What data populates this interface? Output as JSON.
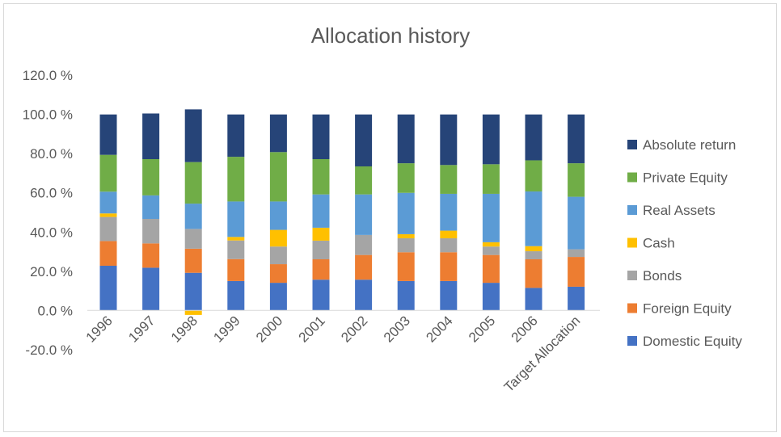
{
  "chart_data": {
    "type": "bar",
    "stacked": true,
    "title": "Allocation history",
    "xlabel": "",
    "ylabel": "",
    "ylim": [
      -20,
      120
    ],
    "yticks": [
      "-20.0 %",
      "0.0 %",
      "20.0 %",
      "40.0 %",
      "60.0 %",
      "80.0 %",
      "100.0 %",
      "120.0 %"
    ],
    "ytick_values": [
      -20,
      0,
      20,
      40,
      60,
      80,
      100,
      120
    ],
    "grid": false,
    "legend_position": "right",
    "categories": [
      "1996",
      "1997",
      "1998",
      "1999",
      "2000",
      "2001",
      "2002",
      "2003",
      "2004",
      "2005",
      "2006",
      "Target Allocation"
    ],
    "series": [
      {
        "name": "Domestic Equity",
        "color": "#4472c4",
        "values": [
          22.8,
          21.8,
          19.2,
          15.0,
          14.1,
          15.7,
          15.7,
          15.0,
          15.0,
          14.1,
          11.5,
          12.1
        ]
      },
      {
        "name": "Foreign Equity",
        "color": "#ed7d31",
        "values": [
          12.6,
          12.4,
          12.3,
          11.2,
          9.5,
          10.4,
          12.6,
          14.7,
          14.7,
          14.2,
          14.6,
          15.2
        ]
      },
      {
        "name": "Bonds",
        "color": "#a5a5a5",
        "values": [
          12.3,
          12.5,
          10.1,
          9.5,
          9.0,
          9.5,
          10.2,
          7.1,
          7.1,
          4.3,
          4.1,
          3.9
        ]
      },
      {
        "name": "Cash",
        "color": "#ffc000",
        "values": [
          1.8,
          0,
          -2.3,
          1.8,
          8.5,
          6.6,
          0,
          2.1,
          3.9,
          2.2,
          2.6,
          0
        ]
      },
      {
        "name": "Real Assets",
        "color": "#5b9bd5",
        "values": [
          11.1,
          12.0,
          12.9,
          18.1,
          14.5,
          17.0,
          20.7,
          21.1,
          18.8,
          24.7,
          27.9,
          26.8
        ]
      },
      {
        "name": "Private Equity",
        "color": "#70ad47",
        "values": [
          18.8,
          18.5,
          21.2,
          22.8,
          25.2,
          18.0,
          14.3,
          15.1,
          14.7,
          15.1,
          15.9,
          17.1
        ]
      },
      {
        "name": "Absolute return",
        "color": "#264478",
        "values": [
          20.6,
          23.3,
          26.9,
          21.6,
          19.2,
          22.8,
          26.5,
          24.9,
          25.8,
          25.4,
          23.4,
          24.9
        ]
      }
    ]
  }
}
